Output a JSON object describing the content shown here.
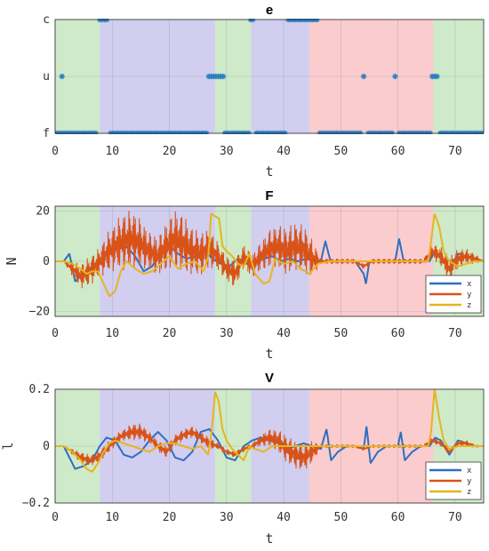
{
  "chart_data": [
    {
      "type": "line",
      "title": "e",
      "xlabel": "t",
      "ylabel": "",
      "xlim": [
        0,
        75
      ],
      "ylim": [
        0,
        2
      ],
      "x_ticks": [
        0,
        10,
        20,
        30,
        40,
        50,
        60,
        70
      ],
      "y_ticks": [
        {
          "value": 0,
          "label": "f"
        },
        {
          "value": 1,
          "label": "u"
        },
        {
          "value": 2,
          "label": "c"
        }
      ],
      "grid": true,
      "regions": [
        {
          "from": 0,
          "to": 7.8,
          "color": "#c6e6c0"
        },
        {
          "from": 7.8,
          "to": 28,
          "color": "#c9c6ec"
        },
        {
          "from": 28,
          "to": 34.3,
          "color": "#c6e6c0"
        },
        {
          "from": 34.3,
          "to": 44.5,
          "color": "#c9c6ec"
        },
        {
          "from": 44.5,
          "to": 66.2,
          "color": "#f9c3c6"
        },
        {
          "from": 66.2,
          "to": 75,
          "color": "#c6e6c0"
        }
      ],
      "series": [
        {
          "color": "#2f7fc1",
          "marker": "asterisk",
          "segments": [
            {
              "level": 0,
              "from": 0,
              "to": 7.5
            },
            {
              "level": 1,
              "from": 1.2,
              "to": 1.2
            },
            {
              "level": 2,
              "from": 7.8,
              "to": 9.4
            },
            {
              "level": 0,
              "from": 9.7,
              "to": 26.8
            },
            {
              "level": 1,
              "from": 26.9,
              "to": 29.5
            },
            {
              "level": 0,
              "from": 29.7,
              "to": 34.0
            },
            {
              "level": 2,
              "from": 34.2,
              "to": 34.8
            },
            {
              "level": 0,
              "from": 35.2,
              "to": 40.5
            },
            {
              "level": 2,
              "from": 40.8,
              "to": 46.0
            },
            {
              "level": 0,
              "from": 46.3,
              "to": 53.8
            },
            {
              "level": 1,
              "from": 54.0,
              "to": 54.4
            },
            {
              "level": 0,
              "from": 54.8,
              "to": 59.2
            },
            {
              "level": 1,
              "from": 59.5,
              "to": 59.9
            },
            {
              "level": 0,
              "from": 60.2,
              "to": 65.8
            },
            {
              "level": 1,
              "from": 66.0,
              "to": 67.2
            },
            {
              "level": 0,
              "from": 67.4,
              "to": 75
            }
          ]
        }
      ]
    },
    {
      "type": "line",
      "title": "F",
      "xlabel": "t",
      "ylabel": "N",
      "xlim": [
        0,
        75
      ],
      "ylim": [
        -22,
        22
      ],
      "x_ticks": [
        0,
        10,
        20,
        30,
        40,
        50,
        60,
        70
      ],
      "y_ticks": [
        {
          "value": -20,
          "label": "−20"
        },
        {
          "value": 0,
          "label": "0"
        },
        {
          "value": 20,
          "label": "20"
        }
      ],
      "grid": true,
      "legend_position": "bottom-right",
      "series": [
        {
          "name": "x",
          "color": "#2f6fbf",
          "x": [
            0,
            1.5,
            2.5,
            3.5,
            5,
            6.5,
            8,
            9.5,
            11,
            12.5,
            14,
            15.5,
            17,
            18.5,
            20,
            21.5,
            23,
            24.5,
            26,
            27.5,
            29,
            30.5,
            32,
            33.5,
            35,
            36.5,
            38,
            39.5,
            41,
            42.5,
            44,
            45.5,
            46.5,
            47.3,
            48.2,
            49.5,
            51,
            52.5,
            54,
            54.4,
            55,
            56.5,
            58,
            59.5,
            60.2,
            61,
            62.5,
            64,
            65.5,
            66.5,
            67.5,
            69,
            70.5,
            72,
            73.5,
            75
          ],
          "values": [
            0,
            0,
            3,
            -8,
            -5,
            -2,
            1,
            4,
            5,
            6,
            2,
            -4,
            -2,
            4,
            6,
            3,
            1,
            2,
            5,
            1,
            -1,
            -2,
            1,
            -1,
            0,
            1,
            2,
            0,
            1,
            0,
            1,
            0,
            0,
            8,
            0,
            0,
            0,
            0,
            -5,
            -9,
            0,
            0,
            0,
            0,
            9,
            0,
            0,
            0,
            0,
            4,
            1,
            -3,
            3,
            2,
            1,
            0
          ]
        },
        {
          "name": "y",
          "color": "#d95319",
          "x": [
            0,
            1.5,
            3,
            4.5,
            6,
            7.5,
            9,
            10.5,
            12,
            13.5,
            15,
            16.5,
            18,
            19.5,
            21,
            22.5,
            24,
            25.5,
            27,
            28.5,
            30,
            31.5,
            33,
            34.5,
            36,
            37.5,
            39,
            40.5,
            42,
            43.5,
            45,
            46.5,
            48,
            49.5,
            51,
            52.5,
            54,
            55.5,
            57,
            58.5,
            60,
            61.5,
            63,
            64.5,
            66,
            67.5,
            69,
            70.5,
            72,
            73.5,
            75
          ],
          "values": [
            0,
            0,
            -3,
            -6,
            -4,
            -1,
            3,
            6,
            8,
            9,
            7,
            4,
            2,
            6,
            9,
            7,
            4,
            3,
            5,
            2,
            -3,
            -5,
            2,
            -2,
            2,
            5,
            6,
            4,
            6,
            5,
            1,
            0,
            0,
            0,
            0,
            0,
            -2,
            0,
            0,
            0,
            0,
            0,
            0,
            0,
            4,
            2,
            -3,
            1,
            2,
            1,
            0
          ],
          "amplitude": [
            0,
            0,
            3,
            5,
            6,
            6,
            8,
            10,
            12,
            12,
            10,
            8,
            8,
            10,
            12,
            12,
            10,
            9,
            8,
            6,
            5,
            6,
            5,
            5,
            6,
            8,
            9,
            10,
            10,
            10,
            8,
            1,
            1,
            1,
            1,
            1,
            1,
            1,
            1,
            1,
            1,
            1,
            1,
            1,
            3,
            4,
            5,
            4,
            3,
            2,
            0
          ]
        },
        {
          "name": "z",
          "color": "#e6b51e",
          "x": [
            0,
            1.5,
            3,
            4.5,
            5.5,
            6.5,
            7.5,
            8.5,
            9.5,
            10.5,
            11.5,
            12.5,
            14,
            15.5,
            17,
            18.5,
            20,
            21.5,
            23,
            24.5,
            26,
            26.8,
            27.3,
            28,
            28.7,
            29.3,
            30,
            31,
            32,
            33,
            34,
            35,
            36.5,
            37.5,
            38.5,
            40,
            41.5,
            43,
            44.5,
            46,
            48,
            50,
            52,
            54,
            56,
            58,
            60,
            62,
            64,
            65.3,
            65.8,
            66.4,
            67.2,
            68,
            69,
            70.5,
            72,
            73.5,
            75
          ],
          "values": [
            0,
            0,
            -1,
            -3,
            -5,
            -4,
            -4,
            -9,
            -14,
            -12,
            -4,
            0,
            -3,
            -5,
            -4,
            -1,
            2,
            -3,
            -1,
            0,
            -4,
            2,
            19,
            18,
            17,
            6,
            4,
            2,
            -1,
            -2,
            3,
            -5,
            -9,
            -8,
            1,
            -1,
            0,
            -3,
            -5,
            -1,
            0,
            0,
            0,
            0,
            0,
            0,
            0,
            0,
            0,
            0,
            8,
            19,
            14,
            4,
            0,
            -2,
            -1,
            0,
            0
          ]
        }
      ]
    },
    {
      "type": "line",
      "title": "V",
      "xlabel": "t",
      "ylabel": "l",
      "xlim": [
        0,
        75
      ],
      "ylim": [
        -0.2,
        0.2
      ],
      "x_ticks": [
        0,
        10,
        20,
        30,
        40,
        50,
        60,
        70
      ],
      "y_ticks": [
        {
          "value": -0.2,
          "label": "−0.2"
        },
        {
          "value": 0,
          "label": "0"
        },
        {
          "value": 0.2,
          "label": "0.2"
        }
      ],
      "grid": true,
      "legend_position": "bottom-right",
      "series": [
        {
          "name": "x",
          "color": "#2f6fbf",
          "x": [
            0,
            1.5,
            2.5,
            3.5,
            5,
            6.5,
            7.8,
            9,
            10.5,
            12,
            13.5,
            15,
            16.5,
            18,
            19.5,
            21,
            22.5,
            24,
            25.5,
            27,
            28.5,
            30,
            31.5,
            33,
            34.5,
            36,
            37.5,
            39,
            40.5,
            42,
            43.5,
            45,
            46.5,
            47.5,
            48.3,
            49.5,
            51,
            52.5,
            54,
            54.5,
            55.2,
            56.5,
            58,
            60,
            60.5,
            61.2,
            62.5,
            64,
            65.5,
            66.5,
            67.5,
            69,
            70.5,
            72,
            73.5,
            75
          ],
          "values": [
            0,
            0,
            -0.04,
            -0.08,
            -0.07,
            -0.05,
            0,
            0.03,
            0.02,
            -0.03,
            -0.04,
            -0.02,
            0.02,
            0.05,
            0.02,
            -0.04,
            -0.05,
            -0.02,
            0.05,
            0.06,
            0.02,
            -0.04,
            -0.05,
            0,
            0.02,
            0.03,
            0.02,
            0.01,
            -0.01,
            0,
            0.01,
            0,
            -0.01,
            0.06,
            -0.05,
            -0.02,
            0,
            0,
            -0.01,
            0.07,
            -0.06,
            -0.02,
            0,
            0,
            0.05,
            -0.05,
            -0.02,
            0,
            0,
            0.03,
            0.02,
            -0.03,
            0.02,
            0.01,
            0,
            0
          ]
        },
        {
          "name": "y",
          "color": "#d95319",
          "x": [
            0,
            1.5,
            3,
            4.5,
            6,
            7.5,
            9,
            10.5,
            12,
            13.5,
            15,
            16.5,
            18,
            19.5,
            21,
            22.5,
            24,
            25.5,
            27,
            28.5,
            30,
            31.5,
            33,
            34.5,
            36,
            37.5,
            39,
            40.5,
            42,
            43.5,
            45,
            46.5,
            48,
            49.5,
            51,
            52.5,
            54,
            55.5,
            57,
            58.5,
            60,
            61.5,
            63,
            64.5,
            66,
            67.5,
            69,
            70.5,
            72,
            73.5,
            75
          ],
          "values": [
            0,
            0,
            -0.02,
            -0.04,
            -0.05,
            -0.04,
            -0.01,
            0.02,
            0.04,
            0.05,
            0.05,
            0.03,
            0,
            -0.02,
            0.02,
            0.04,
            0.05,
            0.03,
            0.01,
            0,
            -0.02,
            -0.03,
            -0.01,
            0,
            0.02,
            0.03,
            0.02,
            -0.01,
            -0.03,
            -0.04,
            -0.02,
            0,
            0,
            0,
            0,
            0,
            -0.01,
            0,
            0,
            0,
            0,
            0,
            0,
            0,
            0.02,
            0.01,
            -0.02,
            0.01,
            0.01,
            0,
            0
          ],
          "amplitude": [
            0,
            0,
            0.01,
            0.02,
            0.02,
            0.02,
            0.02,
            0.02,
            0.02,
            0.03,
            0.03,
            0.02,
            0.02,
            0.02,
            0.02,
            0.02,
            0.02,
            0.02,
            0.02,
            0.01,
            0.01,
            0.01,
            0.01,
            0.01,
            0.02,
            0.03,
            0.04,
            0.05,
            0.05,
            0.05,
            0.04,
            0.005,
            0.005,
            0.005,
            0.005,
            0.005,
            0.005,
            0.005,
            0.005,
            0.005,
            0.005,
            0.005,
            0.005,
            0.005,
            0.01,
            0.01,
            0.01,
            0.01,
            0.01,
            0.005,
            0
          ]
        },
        {
          "name": "z",
          "color": "#e6b51e",
          "x": [
            0,
            1.5,
            3,
            4.5,
            5.5,
            6.5,
            7.5,
            8.5,
            9.5,
            10.5,
            12,
            13.5,
            15,
            16.5,
            18,
            19.5,
            21,
            22.5,
            24,
            25.5,
            26.8,
            27.4,
            28,
            28.6,
            29.3,
            30,
            31,
            32,
            33,
            34,
            35,
            36.5,
            38,
            40,
            42,
            44,
            46,
            48,
            50,
            52,
            54,
            56,
            58,
            60,
            62,
            64,
            65.3,
            65.8,
            66.4,
            67.2,
            68,
            69,
            70.5,
            72,
            73.5,
            75
          ],
          "values": [
            0,
            0,
            -0.02,
            -0.05,
            -0.08,
            -0.09,
            -0.06,
            -0.02,
            0.01,
            0.02,
            0.01,
            0,
            -0.01,
            -0.02,
            0,
            0.01,
            0.01,
            0,
            -0.01,
            0,
            -0.03,
            0.05,
            0.19,
            0.16,
            0.06,
            0.02,
            -0.01,
            -0.03,
            -0.05,
            0,
            -0.01,
            -0.02,
            0,
            0,
            0,
            0,
            0,
            0,
            0,
            0,
            0,
            0,
            0,
            0,
            0,
            0,
            0,
            0.05,
            0.2,
            0.1,
            0.02,
            -0.01,
            0,
            0,
            0,
            0
          ]
        }
      ]
    }
  ]
}
